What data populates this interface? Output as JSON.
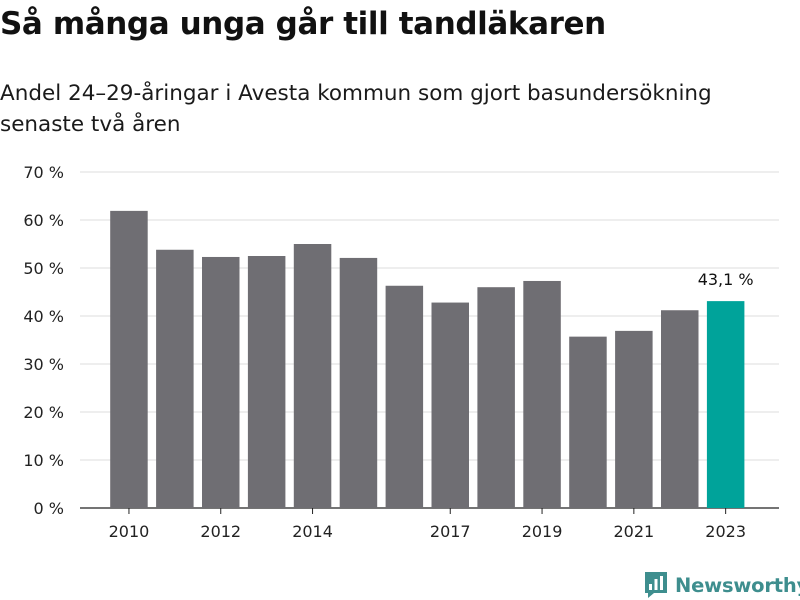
{
  "title": "Så många unga går till tandläkaren",
  "subtitle": "Andel 24–29-åringar i Avesta kommun som gjort basundersökning senaste två åren",
  "brand": {
    "name": "Newsworthy",
    "icon": "newsworthy-logo-icon",
    "color": "#3e8e8e"
  },
  "chart_data": {
    "type": "bar",
    "categories": [
      "2010",
      "2011",
      "2012",
      "2013",
      "2014",
      "2015",
      "2016",
      "2017",
      "2018",
      "2019",
      "2020",
      "2021",
      "2022",
      "2023"
    ],
    "x_tick_labels": [
      "2010",
      "",
      "2012",
      "",
      "2014",
      "",
      "",
      "2017",
      "",
      "2019",
      "",
      "2021",
      "",
      "2023"
    ],
    "values": [
      61.9,
      53.8,
      52.3,
      52.5,
      55.0,
      52.1,
      46.3,
      42.8,
      46.0,
      47.3,
      35.7,
      36.9,
      41.2,
      43.1
    ],
    "ylim": [
      0,
      70
    ],
    "y_ticks": [
      0,
      10,
      20,
      30,
      40,
      50,
      60,
      70
    ],
    "y_tick_labels": [
      "0 %",
      "10 %",
      "20 %",
      "30 %",
      "40 %",
      "50 %",
      "60 %",
      "70 %"
    ],
    "highlight_index": 13,
    "highlight_label": "43,1 %",
    "bar_color": "#6f6e73",
    "highlight_color": "#00a39a",
    "grid": true,
    "xlabel": "",
    "ylabel": ""
  }
}
